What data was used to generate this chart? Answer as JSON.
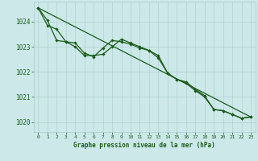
{
  "title": "Graphe pression niveau de la mer (hPa)",
  "background_color": "#cce8e8",
  "grid_color": "#aacccc",
  "line_color": "#1a5c1a",
  "marker_color": "#1a5c1a",
  "xlim": [
    -0.5,
    23.5
  ],
  "ylim": [
    1019.6,
    1024.8
  ],
  "yticks": [
    1020,
    1021,
    1022,
    1023,
    1024
  ],
  "xticks": [
    0,
    1,
    2,
    3,
    4,
    5,
    6,
    7,
    8,
    9,
    10,
    11,
    12,
    13,
    14,
    15,
    16,
    17,
    18,
    19,
    20,
    21,
    22,
    23
  ],
  "series1_x": [
    0,
    1,
    2,
    3,
    4,
    5,
    6,
    7,
    8,
    9,
    10,
    11,
    12,
    13,
    14,
    15,
    16,
    17,
    18,
    19,
    20,
    21,
    22,
    23
  ],
  "series1_y": [
    1024.55,
    1023.85,
    1023.7,
    1023.2,
    1023.15,
    1022.75,
    1022.6,
    1022.95,
    1023.25,
    1023.2,
    1023.1,
    1022.95,
    1022.85,
    1022.55,
    1021.95,
    1021.7,
    1021.55,
    1021.25,
    1021.0,
    1020.5,
    1020.45,
    1020.3,
    1020.15,
    1020.2
  ],
  "series2_x": [
    0,
    1,
    2,
    3,
    4,
    5,
    6,
    7,
    8,
    9,
    10,
    11,
    12,
    13,
    14,
    15,
    16,
    17,
    18,
    19,
    20,
    21,
    22,
    23
  ],
  "series2_y": [
    1024.55,
    1024.05,
    1023.25,
    1023.2,
    1023.0,
    1022.65,
    1022.65,
    1022.7,
    1023.0,
    1023.3,
    1023.15,
    1023.0,
    1022.85,
    1022.65,
    1021.95,
    1021.7,
    1021.6,
    1021.3,
    1021.05,
    1020.5,
    1020.45,
    1020.3,
    1020.15,
    1020.2
  ],
  "trend_x": [
    0,
    23
  ],
  "trend_y": [
    1024.55,
    1020.2
  ]
}
